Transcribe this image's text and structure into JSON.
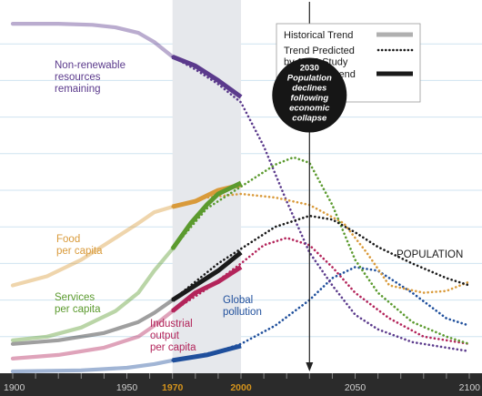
{
  "chart_data": {
    "type": "line",
    "x_ticks": [
      {
        "label": "1900",
        "value": 1900,
        "highlight": false
      },
      {
        "label": "1950",
        "value": 1950,
        "highlight": false
      },
      {
        "label": "1970",
        "value": 1970,
        "highlight": true
      },
      {
        "label": "2000",
        "value": 2000,
        "highlight": true
      },
      {
        "label": "2050",
        "value": 2050,
        "highlight": false
      },
      {
        "label": "2100",
        "value": 2100,
        "highlight": false
      }
    ],
    "xlim": [
      1900,
      2100
    ],
    "ylim": [
      0,
      1
    ],
    "grid": "horizontal",
    "shaded_period": [
      1970,
      2000
    ],
    "marker_year": 2030,
    "highlight_color": "#d4931c",
    "legend": {
      "placement": "top-right",
      "entries": [
        {
          "label": "Historical Trend",
          "style": "solid",
          "color": "#b0b0b0"
        },
        {
          "label": "Trend Predicted by 1972 Study",
          "style": "dotted",
          "color": "#1a1a1a"
        },
        {
          "label": "Observed Trend 1970-2000",
          "style": "solid",
          "color": "#1a1a1a"
        }
      ]
    },
    "annotation": {
      "lines": [
        "2030",
        "Population",
        "declines",
        "following",
        "economic",
        "collapse"
      ],
      "x": 2030,
      "y": 0.76
    },
    "series": [
      {
        "name": "Non-renewable resources remaining",
        "label_lines": [
          "Non-renewable",
          "resources",
          "remaining"
        ],
        "color": "#5b3a8c",
        "label_color": "#5b3a8c",
        "historical": [
          [
            1900,
            0.955
          ],
          [
            1920,
            0.955
          ],
          [
            1935,
            0.952
          ],
          [
            1945,
            0.945
          ],
          [
            1955,
            0.93
          ],
          [
            1962,
            0.905
          ],
          [
            1970,
            0.865
          ]
        ],
        "observed": [
          [
            1970,
            0.865
          ],
          [
            1980,
            0.84
          ],
          [
            1990,
            0.8
          ],
          [
            2000,
            0.755
          ]
        ],
        "predicted": [
          [
            1970,
            0.865
          ],
          [
            1980,
            0.83
          ],
          [
            1990,
            0.79
          ],
          [
            2000,
            0.74
          ],
          [
            2010,
            0.62
          ],
          [
            2020,
            0.47
          ],
          [
            2030,
            0.33
          ],
          [
            2040,
            0.24
          ],
          [
            2050,
            0.16
          ],
          [
            2060,
            0.12
          ],
          [
            2075,
            0.085
          ],
          [
            2090,
            0.07
          ],
          [
            2100,
            0.06
          ]
        ]
      },
      {
        "name": "Food per capita",
        "label_lines": [
          "Food",
          "per capita"
        ],
        "color": "#d99a3a",
        "label_color": "#d99a3a",
        "historical": [
          [
            1900,
            0.24
          ],
          [
            1915,
            0.265
          ],
          [
            1930,
            0.31
          ],
          [
            1945,
            0.37
          ],
          [
            1955,
            0.41
          ],
          [
            1962,
            0.44
          ],
          [
            1970,
            0.455
          ]
        ],
        "observed": [
          [
            1970,
            0.455
          ],
          [
            1980,
            0.47
          ],
          [
            1990,
            0.5
          ],
          [
            2000,
            0.515
          ]
        ],
        "predicted": [
          [
            1970,
            0.455
          ],
          [
            1985,
            0.48
          ],
          [
            2000,
            0.49
          ],
          [
            2015,
            0.48
          ],
          [
            2030,
            0.46
          ],
          [
            2045,
            0.41
          ],
          [
            2055,
            0.33
          ],
          [
            2065,
            0.24
          ],
          [
            2080,
            0.22
          ],
          [
            2090,
            0.225
          ],
          [
            2100,
            0.25
          ]
        ]
      },
      {
        "name": "Services per capita",
        "label_lines": [
          "Services",
          "per capita"
        ],
        "color": "#5b9a2e",
        "label_color": "#5b9a2e",
        "historical": [
          [
            1900,
            0.09
          ],
          [
            1915,
            0.1
          ],
          [
            1930,
            0.125
          ],
          [
            1945,
            0.17
          ],
          [
            1955,
            0.22
          ],
          [
            1962,
            0.28
          ],
          [
            1970,
            0.34
          ]
        ],
        "observed": [
          [
            1970,
            0.34
          ],
          [
            1978,
            0.41
          ],
          [
            1985,
            0.46
          ],
          [
            1990,
            0.49
          ],
          [
            2000,
            0.52
          ]
        ],
        "predicted": [
          [
            1970,
            0.34
          ],
          [
            1985,
            0.45
          ],
          [
            2000,
            0.51
          ],
          [
            2015,
            0.57
          ],
          [
            2023,
            0.59
          ],
          [
            2030,
            0.575
          ],
          [
            2040,
            0.46
          ],
          [
            2050,
            0.31
          ],
          [
            2060,
            0.22
          ],
          [
            2075,
            0.14
          ],
          [
            2090,
            0.1
          ],
          [
            2100,
            0.08
          ]
        ]
      },
      {
        "name": "Industrial output per capita",
        "label_lines": [
          "Industrial",
          "output",
          "per capita"
        ],
        "color": "#b3245a",
        "label_color": "#b3245a",
        "historical": [
          [
            1900,
            0.04
          ],
          [
            1920,
            0.05
          ],
          [
            1940,
            0.07
          ],
          [
            1955,
            0.1
          ],
          [
            1962,
            0.13
          ],
          [
            1970,
            0.17
          ]
        ],
        "observed": [
          [
            1970,
            0.17
          ],
          [
            1980,
            0.22
          ],
          [
            1990,
            0.25
          ],
          [
            2000,
            0.29
          ]
        ],
        "predicted": [
          [
            1970,
            0.17
          ],
          [
            1985,
            0.23
          ],
          [
            2000,
            0.3
          ],
          [
            2010,
            0.35
          ],
          [
            2020,
            0.37
          ],
          [
            2030,
            0.35
          ],
          [
            2040,
            0.29
          ],
          [
            2050,
            0.22
          ],
          [
            2065,
            0.15
          ],
          [
            2080,
            0.1
          ],
          [
            2100,
            0.08
          ]
        ]
      },
      {
        "name": "Global pollution",
        "label_lines": [
          "Global",
          "pollution"
        ],
        "color": "#1f4f9c",
        "label_color": "#1f4f9c",
        "historical": [
          [
            1900,
            0.005
          ],
          [
            1930,
            0.008
          ],
          [
            1950,
            0.015
          ],
          [
            1962,
            0.025
          ],
          [
            1970,
            0.035
          ]
        ],
        "observed": [
          [
            1970,
            0.035
          ],
          [
            1985,
            0.05
          ],
          [
            2000,
            0.075
          ]
        ],
        "predicted": [
          [
            1970,
            0.035
          ],
          [
            1990,
            0.06
          ],
          [
            2000,
            0.08
          ],
          [
            2015,
            0.13
          ],
          [
            2030,
            0.2
          ],
          [
            2040,
            0.26
          ],
          [
            2050,
            0.29
          ],
          [
            2060,
            0.28
          ],
          [
            2075,
            0.22
          ],
          [
            2090,
            0.15
          ],
          [
            2100,
            0.13
          ]
        ]
      },
      {
        "name": "POPULATION",
        "label_lines": [
          "POPULATION"
        ],
        "color": "#1a1a1a",
        "label_color": "#1a1a1a",
        "historical": [
          [
            1900,
            0.08
          ],
          [
            1920,
            0.09
          ],
          [
            1940,
            0.11
          ],
          [
            1955,
            0.14
          ],
          [
            1962,
            0.165
          ],
          [
            1970,
            0.2
          ]
        ],
        "observed": [
          [
            1970,
            0.2
          ],
          [
            1980,
            0.24
          ],
          [
            1990,
            0.28
          ],
          [
            2000,
            0.33
          ]
        ],
        "predicted": [
          [
            1970,
            0.2
          ],
          [
            1990,
            0.3
          ],
          [
            2000,
            0.34
          ],
          [
            2015,
            0.4
          ],
          [
            2030,
            0.43
          ],
          [
            2040,
            0.42
          ],
          [
            2050,
            0.385
          ],
          [
            2060,
            0.345
          ],
          [
            2075,
            0.3
          ],
          [
            2090,
            0.26
          ],
          [
            2100,
            0.24
          ]
        ]
      }
    ]
  }
}
